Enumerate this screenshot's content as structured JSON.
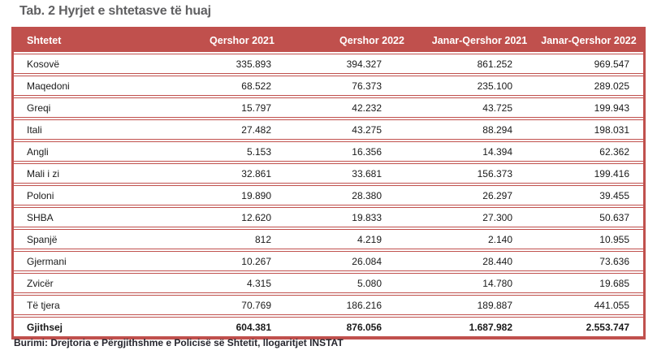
{
  "title": "Tab. 2 Hyrjet e shtetasve të huaj",
  "source_note": "Burimi: Drejtoria e Përgjithshme e Policisë së Shtetit, llogaritjet INSTAT",
  "colors": {
    "accent_red": "#C0504D",
    "title_gray": "#606062",
    "header_text": "#ffffff",
    "body_text": "#1a1a1a"
  },
  "table": {
    "columns": [
      "Shtetet",
      "Qershor 2021",
      "Qershor 2022",
      "Janar-Qershor 2021",
      "Janar-Qershor 2022"
    ],
    "rows": [
      [
        "Kosovë",
        "335.893",
        "394.327",
        "861.252",
        "969.547"
      ],
      [
        "Maqedoni",
        "68.522",
        "76.373",
        "235.100",
        "289.025"
      ],
      [
        "Greqi",
        "15.797",
        "42.232",
        "43.725",
        "199.943"
      ],
      [
        "Itali",
        "27.482",
        "43.275",
        "88.294",
        "198.031"
      ],
      [
        "Angli",
        "5.153",
        "16.356",
        "14.394",
        "62.362"
      ],
      [
        "Mali i zi",
        "32.861",
        "33.681",
        "156.373",
        "199.416"
      ],
      [
        "Poloni",
        "19.890",
        "28.380",
        "26.297",
        "39.455"
      ],
      [
        "SHBA",
        "12.620",
        "19.833",
        "27.300",
        "50.637"
      ],
      [
        "Spanjë",
        "812",
        "4.219",
        "2.140",
        "10.955"
      ],
      [
        "Gjermani",
        "10.267",
        "26.084",
        "28.440",
        "73.636"
      ],
      [
        "Zvicër",
        "4.315",
        "5.080",
        "14.780",
        "19.685"
      ],
      [
        "Të tjera",
        "70.769",
        "186.216",
        "189.887",
        "441.055"
      ]
    ],
    "total_row": [
      "Gjithsej",
      "604.381",
      "876.056",
      "1.687.982",
      "2.553.747"
    ]
  }
}
